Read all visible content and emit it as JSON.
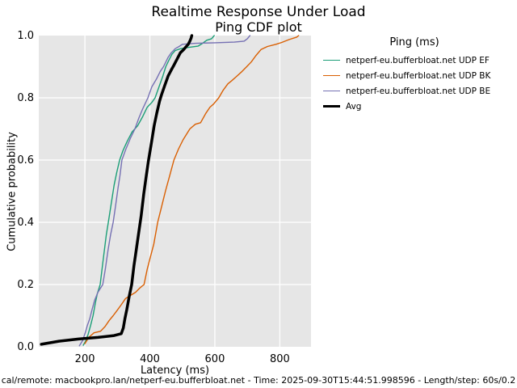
{
  "figure": {
    "title": "Realtime Response Under Load",
    "subtitle": "Ping CDF plot",
    "footer": "cal/remote: macbookpro.lan/netperf-eu.bufferbloat.net - Time: 2025-09-30T15:44:51.998596 - Length/step: 60s/0.2"
  },
  "chart_data": {
    "type": "line",
    "title": "Realtime Response Under Load",
    "subtitle": "Ping CDF plot",
    "xlabel": "Latency (ms)",
    "ylabel": "Cumulative probability",
    "xlim": [
      58,
      896
    ],
    "ylim": [
      0.0,
      1.0
    ],
    "xticks": [
      200,
      400,
      600,
      800
    ],
    "yticks": [
      0.0,
      0.2,
      0.4,
      0.6,
      0.8,
      1.0
    ],
    "ytick_labels": [
      "0.0",
      "0.2",
      "0.4",
      "0.6",
      "0.8",
      "1.0"
    ],
    "grid": true,
    "plot_background": "#e6e6e6",
    "grid_color": "#ffffff",
    "legend_title": "Ping (ms)",
    "legend_position": "upper-right-outside",
    "series": [
      {
        "name": "netperf-eu.bufferbloat.net UDP EF",
        "color": "#1b9e77",
        "line_width": 1.4,
        "points": [
          [
            195,
            0.005
          ],
          [
            203,
            0.02
          ],
          [
            210,
            0.04
          ],
          [
            218,
            0.07
          ],
          [
            225,
            0.1
          ],
          [
            232,
            0.14
          ],
          [
            238,
            0.17
          ],
          [
            247,
            0.2
          ],
          [
            254,
            0.26
          ],
          [
            260,
            0.31
          ],
          [
            266,
            0.36
          ],
          [
            272,
            0.4
          ],
          [
            281,
            0.46
          ],
          [
            290,
            0.52
          ],
          [
            298,
            0.56
          ],
          [
            307,
            0.6
          ],
          [
            317,
            0.63
          ],
          [
            330,
            0.66
          ],
          [
            345,
            0.69
          ],
          [
            362,
            0.71
          ],
          [
            378,
            0.74
          ],
          [
            392,
            0.77
          ],
          [
            406,
            0.785
          ],
          [
            416,
            0.8
          ],
          [
            428,
            0.835
          ],
          [
            440,
            0.87
          ],
          [
            449,
            0.9
          ],
          [
            458,
            0.92
          ],
          [
            468,
            0.94
          ],
          [
            478,
            0.952
          ],
          [
            495,
            0.958
          ],
          [
            520,
            0.962
          ],
          [
            548,
            0.966
          ],
          [
            562,
            0.975
          ],
          [
            575,
            0.985
          ],
          [
            590,
            0.99
          ],
          [
            598,
            1.0
          ]
        ]
      },
      {
        "name": "netperf-eu.bufferbloat.net UDP BK",
        "color": "#d95f02",
        "line_width": 1.4,
        "points": [
          [
            200,
            0.01
          ],
          [
            212,
            0.03
          ],
          [
            228,
            0.045
          ],
          [
            248,
            0.05
          ],
          [
            262,
            0.065
          ],
          [
            275,
            0.085
          ],
          [
            287,
            0.1
          ],
          [
            298,
            0.115
          ],
          [
            312,
            0.135
          ],
          [
            325,
            0.155
          ],
          [
            340,
            0.165
          ],
          [
            356,
            0.175
          ],
          [
            370,
            0.19
          ],
          [
            382,
            0.2
          ],
          [
            392,
            0.25
          ],
          [
            402,
            0.29
          ],
          [
            412,
            0.33
          ],
          [
            424,
            0.4
          ],
          [
            436,
            0.45
          ],
          [
            448,
            0.5
          ],
          [
            461,
            0.55
          ],
          [
            474,
            0.6
          ],
          [
            488,
            0.635
          ],
          [
            502,
            0.665
          ],
          [
            523,
            0.7
          ],
          [
            540,
            0.715
          ],
          [
            556,
            0.72
          ],
          [
            572,
            0.75
          ],
          [
            585,
            0.77
          ],
          [
            596,
            0.78
          ],
          [
            612,
            0.8
          ],
          [
            626,
            0.825
          ],
          [
            640,
            0.845
          ],
          [
            652,
            0.855
          ],
          [
            668,
            0.87
          ],
          [
            684,
            0.885
          ],
          [
            698,
            0.9
          ],
          [
            712,
            0.915
          ],
          [
            726,
            0.935
          ],
          [
            742,
            0.955
          ],
          [
            762,
            0.965
          ],
          [
            788,
            0.972
          ],
          [
            806,
            0.978
          ],
          [
            828,
            0.987
          ],
          [
            852,
            0.995
          ],
          [
            858,
            1.0
          ]
        ]
      },
      {
        "name": "netperf-eu.bufferbloat.net UDP BE",
        "color": "#7570b3",
        "line_width": 1.4,
        "points": [
          [
            183,
            0.003
          ],
          [
            193,
            0.02
          ],
          [
            201,
            0.045
          ],
          [
            208,
            0.07
          ],
          [
            215,
            0.09
          ],
          [
            222,
            0.12
          ],
          [
            230,
            0.15
          ],
          [
            240,
            0.175
          ],
          [
            255,
            0.2
          ],
          [
            263,
            0.25
          ],
          [
            271,
            0.31
          ],
          [
            279,
            0.36
          ],
          [
            287,
            0.4
          ],
          [
            294,
            0.45
          ],
          [
            302,
            0.51
          ],
          [
            308,
            0.55
          ],
          [
            314,
            0.6
          ],
          [
            326,
            0.635
          ],
          [
            340,
            0.67
          ],
          [
            354,
            0.7
          ],
          [
            366,
            0.735
          ],
          [
            378,
            0.765
          ],
          [
            394,
            0.8
          ],
          [
            406,
            0.835
          ],
          [
            420,
            0.86
          ],
          [
            432,
            0.885
          ],
          [
            442,
            0.9
          ],
          [
            456,
            0.93
          ],
          [
            466,
            0.945
          ],
          [
            478,
            0.958
          ],
          [
            490,
            0.965
          ],
          [
            500,
            0.972
          ],
          [
            540,
            0.975
          ],
          [
            600,
            0.977
          ],
          [
            660,
            0.979
          ],
          [
            690,
            0.982
          ],
          [
            700,
            0.99
          ],
          [
            708,
            1.0
          ]
        ]
      },
      {
        "name": "Avg",
        "color": "#000000",
        "line_width": 3.5,
        "points": [
          [
            66,
            0.008
          ],
          [
            120,
            0.018
          ],
          [
            180,
            0.025
          ],
          [
            240,
            0.03
          ],
          [
            290,
            0.036
          ],
          [
            312,
            0.042
          ],
          [
            318,
            0.06
          ],
          [
            323,
            0.09
          ],
          [
            329,
            0.12
          ],
          [
            336,
            0.16
          ],
          [
            344,
            0.2
          ],
          [
            351,
            0.26
          ],
          [
            358,
            0.31
          ],
          [
            366,
            0.37
          ],
          [
            373,
            0.42
          ],
          [
            381,
            0.49
          ],
          [
            389,
            0.55
          ],
          [
            396,
            0.6
          ],
          [
            404,
            0.65
          ],
          [
            413,
            0.71
          ],
          [
            421,
            0.75
          ],
          [
            430,
            0.79
          ],
          [
            436,
            0.81
          ],
          [
            446,
            0.84
          ],
          [
            456,
            0.87
          ],
          [
            466,
            0.89
          ],
          [
            474,
            0.905
          ],
          [
            484,
            0.925
          ],
          [
            494,
            0.945
          ],
          [
            504,
            0.955
          ],
          [
            512,
            0.965
          ],
          [
            518,
            0.972
          ],
          [
            523,
            0.982
          ],
          [
            527,
            0.992
          ],
          [
            529,
            1.0
          ]
        ]
      }
    ]
  }
}
